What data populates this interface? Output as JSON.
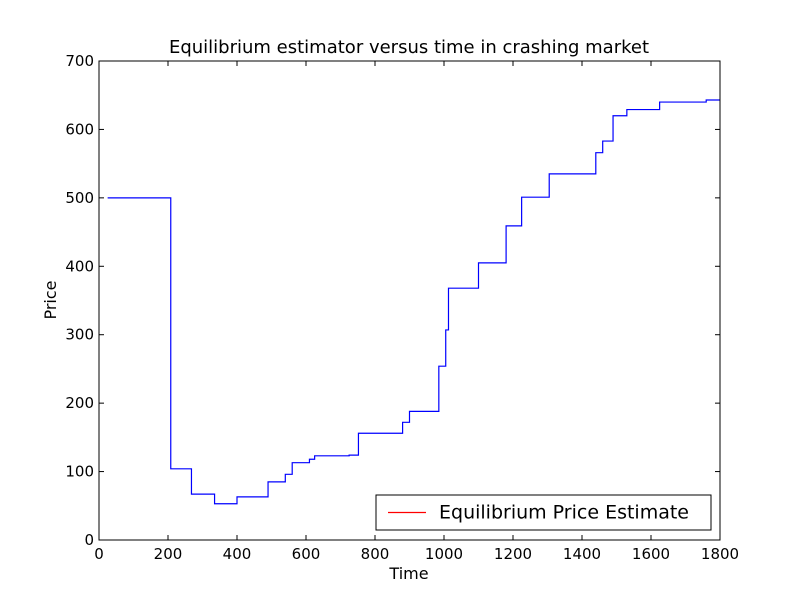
{
  "chart_data": {
    "type": "line",
    "title": "Equilibrium estimator versus time in crashing market",
    "xlabel": "Time",
    "ylabel": "Price",
    "xlim": [
      0,
      1800
    ],
    "ylim": [
      0,
      700
    ],
    "xticks": [
      0,
      200,
      400,
      600,
      800,
      1000,
      1200,
      1400,
      1600,
      1800
    ],
    "yticks": [
      0,
      100,
      200,
      300,
      400,
      500,
      600,
      700
    ],
    "grid": false,
    "legend_position": "lower-right",
    "legend_entries": [
      "Equilibrium Price Estimate"
    ],
    "series": [
      {
        "name": "Equilibrium Price Estimate",
        "color": "#0000ff",
        "legend_color": "#ff0000",
        "step": true,
        "x": [
          25,
          208,
          268,
          335,
          400,
          490,
          540,
          560,
          610,
          625,
          725,
          752,
          880,
          900,
          985,
          1005,
          1013,
          1100,
          1180,
          1225,
          1305,
          1440,
          1460,
          1490,
          1530,
          1625,
          1760,
          1800
        ],
        "y": [
          500,
          104,
          67,
          53,
          63,
          85,
          96,
          113,
          118,
          123,
          124,
          156,
          172,
          188,
          254,
          307,
          368,
          405,
          459,
          501,
          535,
          566,
          583,
          620,
          629,
          640,
          643,
          643
        ]
      }
    ]
  }
}
